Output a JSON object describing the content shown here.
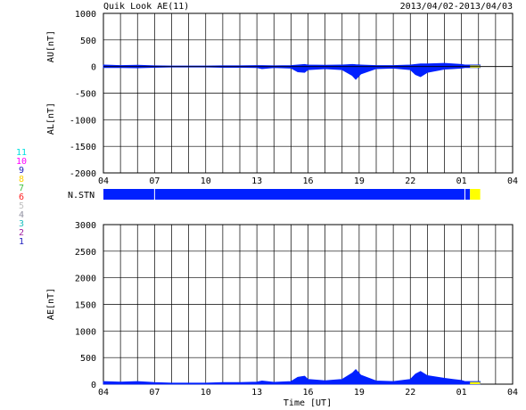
{
  "header": {
    "title": "Quik Look AE(11)",
    "date_range": "2013/04/02-2013/04/03"
  },
  "station_legend": {
    "labels": [
      "11",
      "10",
      "9",
      "8",
      "7",
      "6",
      "5",
      "4",
      "3",
      "2",
      "1"
    ],
    "colors": [
      "#00e0e0",
      "#ff00ff",
      "#2020c0",
      "#ffd000",
      "#40c040",
      "#ff2020",
      "#c0c0c0",
      "#9090a0",
      "#20c0c0",
      "#a020a0",
      "#2020c0"
    ]
  },
  "x_axis": {
    "tick_labels": [
      "04",
      "07",
      "10",
      "13",
      "16",
      "19",
      "22",
      "01",
      "04"
    ],
    "xlabel": "Time [UT]",
    "range_hours": [
      4,
      28
    ]
  },
  "nstn": {
    "label": "N.STN",
    "segments": [
      {
        "start": 4.0,
        "end": 25.2,
        "color": "#0020ff",
        "count": 11
      },
      {
        "start": 25.2,
        "end": 25.5,
        "color": "#0020ff",
        "count": 11
      },
      {
        "start": 25.5,
        "end": 26.1,
        "color": "#ffff00",
        "count": 1
      }
    ]
  },
  "chart_data": [
    {
      "type": "area",
      "ylabel_upper": "AU[nT]",
      "ylabel_lower": "AL[nT]",
      "ylim": [
        -2000,
        1000
      ],
      "y_ticks": [
        1000,
        500,
        0,
        -500,
        -1000,
        -1500,
        -2000
      ],
      "x_hours": [
        4,
        5,
        6,
        7,
        8,
        9,
        10,
        11,
        12,
        13,
        13.3,
        14,
        15,
        15.4,
        15.8,
        16,
        17,
        18,
        18.6,
        18.8,
        19.1,
        20,
        21,
        22,
        22.3,
        22.6,
        23,
        24,
        24.5,
        25,
        25.2,
        25.5,
        26.1
      ],
      "series": [
        {
          "key": "AU",
          "color": "#0020ff",
          "values": [
            30,
            20,
            25,
            15,
            10,
            10,
            10,
            15,
            15,
            20,
            20,
            15,
            20,
            30,
            40,
            30,
            25,
            30,
            40,
            35,
            30,
            20,
            20,
            30,
            40,
            50,
            50,
            60,
            50,
            40,
            30,
            30,
            30
          ]
        },
        {
          "key": "AL",
          "color": "#0020ff",
          "values": [
            -20,
            -20,
            -25,
            -15,
            -10,
            -10,
            -10,
            -15,
            -15,
            -20,
            -40,
            -20,
            -30,
            -100,
            -110,
            -60,
            -40,
            -60,
            -170,
            -240,
            -140,
            -40,
            -30,
            -60,
            -150,
            -190,
            -110,
            -50,
            -40,
            -30,
            -20,
            -20,
            -20
          ]
        }
      ],
      "tail": {
        "start": 25.5,
        "end": 26.1,
        "color": "#ffff00",
        "au": 20,
        "al": -20
      }
    },
    {
      "type": "area",
      "ylabel": "AE[nT]",
      "ylim": [
        0,
        3000
      ],
      "y_ticks": [
        3000,
        2500,
        2000,
        1500,
        1000,
        500,
        0
      ],
      "x_hours": [
        4,
        5,
        6,
        7,
        8,
        9,
        10,
        11,
        12,
        13,
        13.3,
        14,
        15,
        15.4,
        15.8,
        16,
        17,
        18,
        18.6,
        18.8,
        19.1,
        20,
        21,
        22,
        22.3,
        22.6,
        23,
        24,
        24.5,
        25,
        25.2,
        25.5,
        26.1
      ],
      "series": [
        {
          "key": "AE",
          "color": "#0020ff",
          "values": [
            50,
            40,
            50,
            30,
            20,
            20,
            20,
            30,
            30,
            40,
            60,
            35,
            50,
            130,
            150,
            90,
            65,
            90,
            210,
            275,
            170,
            60,
            50,
            90,
            190,
            240,
            160,
            110,
            90,
            70,
            50,
            50,
            50
          ]
        }
      ],
      "tail": {
        "start": 25.5,
        "end": 26.1,
        "color": "#ffff00",
        "value": 40
      }
    }
  ]
}
